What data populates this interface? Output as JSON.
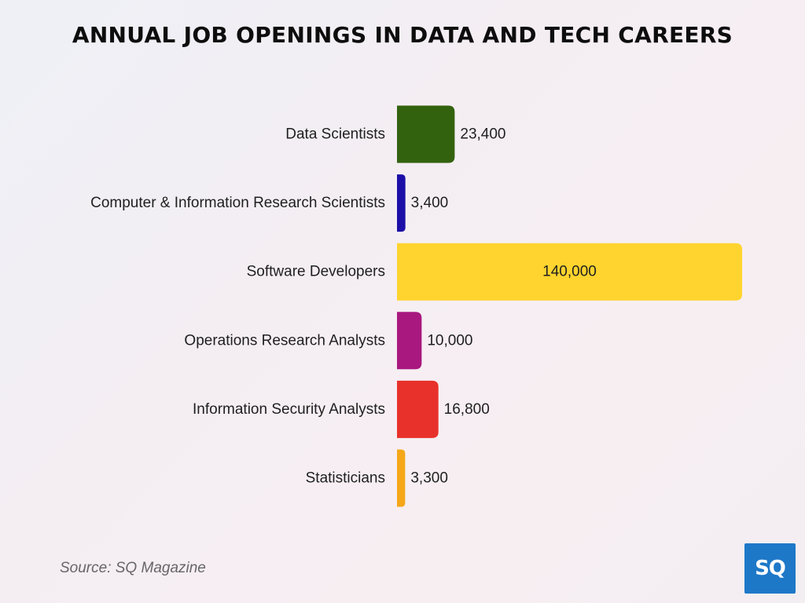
{
  "title": "ANNUAL JOB OPENINGS IN DATA AND TECH CAREERS",
  "source": "Source: SQ Magazine",
  "logo_text": "SQ",
  "chart_data": {
    "type": "bar",
    "orientation": "horizontal",
    "title": "ANNUAL JOB OPENINGS IN DATA AND TECH CAREERS",
    "categories": [
      "Data Scientists",
      "Computer & Information Research Scientists",
      "Software Developers",
      "Operations Research Analysts",
      "Information Security Analysts",
      "Statisticians"
    ],
    "values": [
      23400,
      3400,
      140000,
      10000,
      16800,
      3300
    ],
    "value_labels": [
      "23,400",
      "3,400",
      "140,000",
      "10,000",
      "16,800",
      "3,300"
    ],
    "colors": [
      "#33620f",
      "#1c0fa8",
      "#ffd42e",
      "#a8187e",
      "#e8312a",
      "#f5a718"
    ],
    "xlim": [
      0,
      140000
    ],
    "grid": false,
    "legend": "none"
  }
}
